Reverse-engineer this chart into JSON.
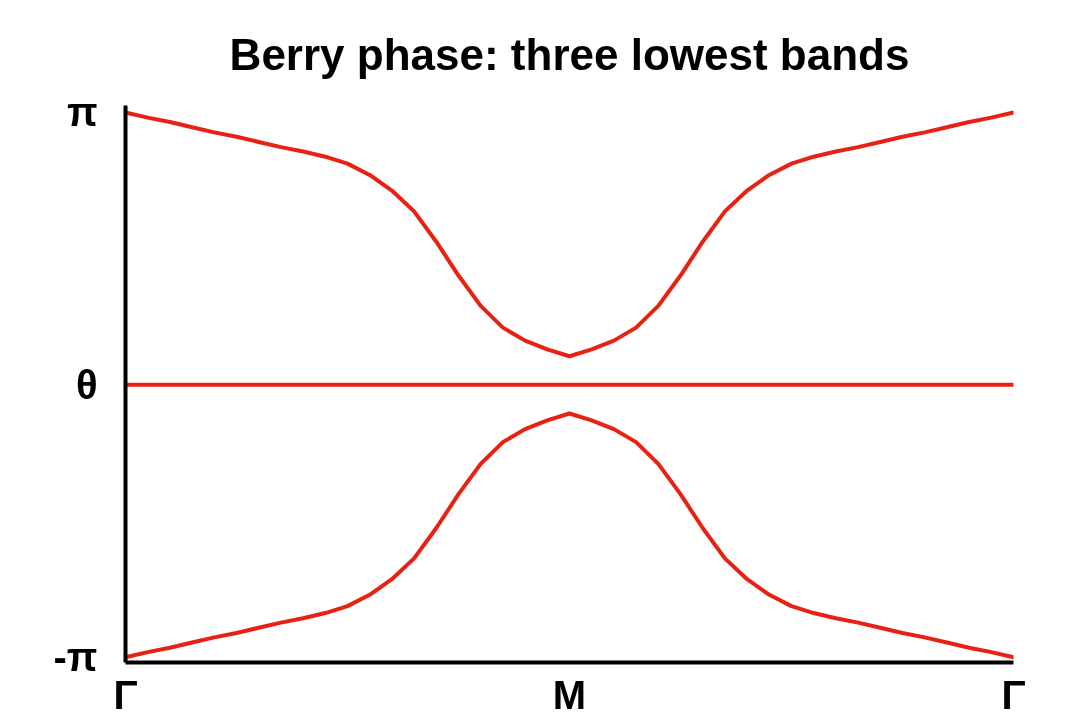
{
  "chart_data": {
    "type": "line",
    "title": "Berry phase: three lowest bands",
    "categories": [
      "Γ",
      null,
      null,
      null,
      null,
      null,
      null,
      null,
      null,
      null,
      null,
      null,
      null,
      null,
      null,
      null,
      null,
      null,
      null,
      null,
      "M",
      null,
      null,
      null,
      null,
      null,
      null,
      null,
      null,
      null,
      null,
      null,
      null,
      null,
      null,
      null,
      null,
      null,
      null,
      null,
      "Γ"
    ],
    "ylim": [
      -3.2,
      3.22
    ],
    "yticks": [
      {
        "value": 3.14,
        "label": "π"
      },
      {
        "value": 0,
        "label": "θ"
      },
      {
        "value": -3.14,
        "label": "-π"
      }
    ],
    "line_style": "solid",
    "series": [
      {
        "color": "#e82113",
        "values": [
          3.14,
          3.08,
          3.03,
          2.97,
          2.91,
          2.86,
          2.8,
          2.74,
          2.69,
          2.63,
          2.55,
          2.42,
          2.24,
          2.0,
          1.65,
          1.26,
          0.91,
          0.66,
          0.51,
          0.41,
          0.33,
          0.41,
          0.51,
          0.66,
          0.91,
          1.26,
          1.65,
          2.0,
          2.24,
          2.42,
          2.55,
          2.63,
          2.69,
          2.74,
          2.8,
          2.86,
          2.91,
          2.97,
          3.03,
          3.08,
          3.14
        ]
      },
      {
        "color": "#e82113",
        "values": [
          0,
          0,
          0,
          0,
          0,
          0,
          0,
          0,
          0,
          0,
          0,
          0,
          0,
          0,
          0,
          0,
          0,
          0,
          0,
          0,
          0,
          0,
          0,
          0,
          0,
          0,
          0,
          0,
          0,
          0,
          0,
          0,
          0,
          0,
          0,
          0,
          0,
          0,
          0,
          0,
          0
        ]
      },
      {
        "color": "#e82113",
        "values": [
          -3.14,
          -3.08,
          -3.03,
          -2.97,
          -2.91,
          -2.86,
          -2.8,
          -2.74,
          -2.69,
          -2.63,
          -2.55,
          -2.42,
          -2.24,
          -2.0,
          -1.65,
          -1.26,
          -0.91,
          -0.66,
          -0.51,
          -0.41,
          -0.33,
          -0.41,
          -0.51,
          -0.66,
          -0.91,
          -1.26,
          -1.65,
          -2.0,
          -2.24,
          -2.42,
          -2.55,
          -2.63,
          -2.69,
          -2.74,
          -2.8,
          -2.86,
          -2.91,
          -2.97,
          -3.03,
          -3.08,
          -3.14
        ]
      }
    ]
  }
}
